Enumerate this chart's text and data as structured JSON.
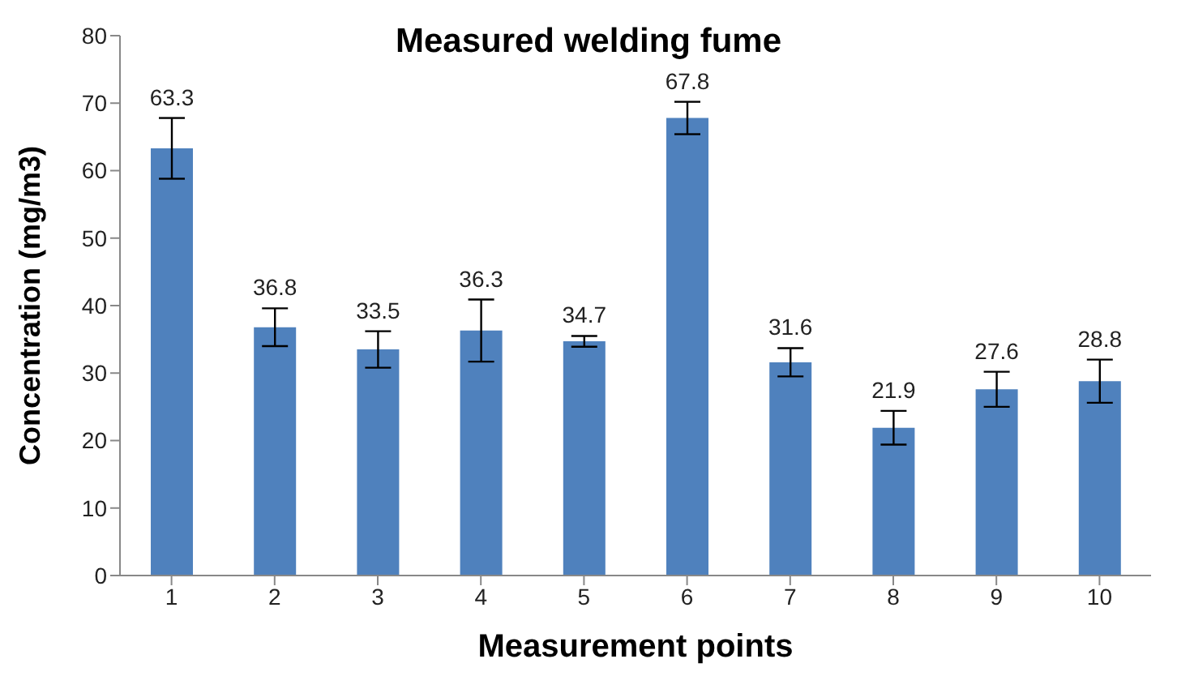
{
  "chart_data": {
    "type": "bar",
    "title": "Measured welding fume",
    "xlabel": "Measurement points",
    "ylabel": "Concentration (mg/m3)",
    "categories": [
      "1",
      "2",
      "3",
      "4",
      "5",
      "6",
      "7",
      "8",
      "9",
      "10"
    ],
    "values": [
      63.3,
      36.8,
      33.5,
      36.3,
      34.7,
      67.8,
      31.6,
      21.9,
      27.6,
      28.8
    ],
    "errors": [
      4.5,
      2.8,
      2.7,
      4.6,
      0.8,
      2.4,
      2.1,
      2.5,
      2.6,
      3.2
    ],
    "color": "#4f81bd",
    "ylim": [
      0,
      80
    ],
    "yticks": [
      0,
      10,
      20,
      30,
      40,
      50,
      60,
      70,
      80
    ],
    "grid": false,
    "data_labels": true,
    "legend": false
  }
}
